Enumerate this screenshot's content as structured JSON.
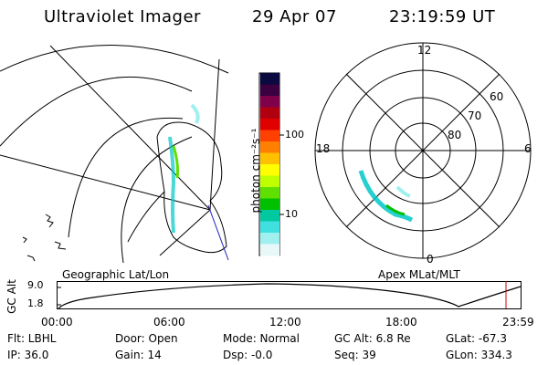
{
  "header": {
    "instrument": "Ultraviolet Imager",
    "date": "29 Apr 07",
    "time": "23:19:59 UT"
  },
  "geo_map": {
    "label": "Geographic Lat/Lon"
  },
  "colorbar": {
    "unit_label": "photon cm⁻²s⁻¹",
    "ticks": [
      "100",
      "10"
    ],
    "colors": [
      "#0a0a40",
      "#3a0040",
      "#80004a",
      "#b00010",
      "#e00000",
      "#ff4000",
      "#ff8000",
      "#ffc000",
      "#ffff00",
      "#c0ff00",
      "#60e000",
      "#00c000",
      "#00c8a0",
      "#40e0e0",
      "#a0f0f0",
      "#e8f8f8"
    ]
  },
  "polar_map": {
    "label": "Apex MLat/MLT",
    "mlt_labels": {
      "top": "12",
      "right": "6",
      "bottom": "0",
      "left": "18"
    },
    "lat_labels": [
      "60",
      "70",
      "80"
    ]
  },
  "altitude_plot": {
    "ylabel": "GC Alt",
    "yticks": [
      "9.0",
      "1.8"
    ],
    "xticks": [
      "00:00",
      "06:00",
      "12:00",
      "18:00",
      "23:59"
    ]
  },
  "status": {
    "row1": {
      "flt": "Flt: LBHL",
      "door": "Door: Open",
      "mode": "Mode: Normal",
      "gcalt": "GC Alt: 6.8 Re",
      "glat": "GLat: -67.3"
    },
    "row2": {
      "ip": "IP: 36.0",
      "gain": "Gain: 14",
      "dsp": "Dsp:   -0.0",
      "seq": "Seq: 39",
      "glon": "GLon: 334.3"
    }
  }
}
